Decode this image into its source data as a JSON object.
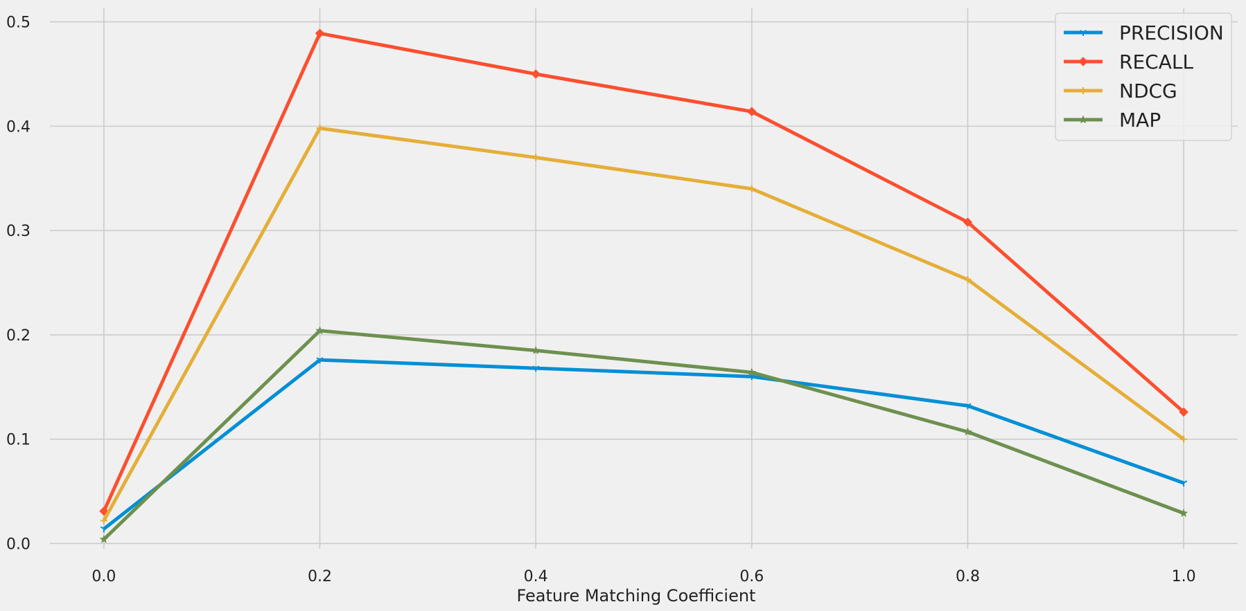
{
  "chart_data": {
    "type": "line",
    "title": "",
    "xlabel": "Feature Matching Coefficient",
    "ylabel": "",
    "x": [
      0.0,
      0.2,
      0.4,
      0.6,
      0.8,
      1.0
    ],
    "xticks": [
      "0.0",
      "0.2",
      "0.4",
      "0.6",
      "0.8",
      "1.0"
    ],
    "yticks": [
      "0.0",
      "0.1",
      "0.2",
      "0.3",
      "0.4",
      "0.5"
    ],
    "xlim": [
      -0.05,
      1.05
    ],
    "ylim": [
      -0.005,
      0.513
    ],
    "grid": true,
    "legend_position": "top-right",
    "series": [
      {
        "name": "PRECISION",
        "color": "#008fd5",
        "marker": "tri",
        "values": [
          0.014,
          0.176,
          0.168,
          0.16,
          0.132,
          0.058
        ]
      },
      {
        "name": "RECALL",
        "color": "#fc4f30",
        "marker": "diamond",
        "values": [
          0.031,
          0.489,
          0.45,
          0.414,
          0.308,
          0.126
        ]
      },
      {
        "name": "NDCG",
        "color": "#e5ae38",
        "marker": "plus",
        "values": [
          0.022,
          0.398,
          0.37,
          0.34,
          0.253,
          0.1
        ]
      },
      {
        "name": "MAP",
        "color": "#6d904f",
        "marker": "star",
        "values": [
          0.004,
          0.204,
          0.185,
          0.164,
          0.107,
          0.029
        ]
      }
    ]
  }
}
